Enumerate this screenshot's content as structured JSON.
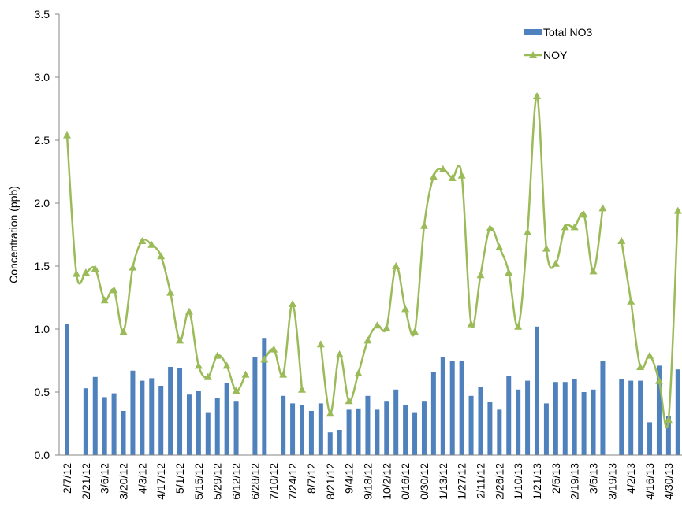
{
  "chart_data": {
    "type": "bar_line",
    "y_label": "Concentration (ppb)",
    "categories": [
      "2/7/12",
      null,
      "2/21/12",
      null,
      "3/6/12",
      null,
      "3/20/12",
      null,
      "4/3/12",
      null,
      "4/17/12",
      null,
      "5/1/12",
      null,
      "5/15/12",
      null,
      "5/29/12",
      null,
      "6/12/12",
      null,
      "6/28/12",
      null,
      "7/10/12",
      null,
      "7/24/12",
      null,
      "8/7/12",
      null,
      "8/21/12",
      null,
      "9/4/12",
      null,
      "9/18/12",
      null,
      "10/2/12",
      null,
      "0/16/12",
      null,
      "0/30/12",
      null,
      "1/13/12",
      null,
      "1/27/12",
      null,
      "2/11/12",
      null,
      "2/26/12",
      null,
      "1/10/13",
      null,
      "1/21/13",
      null,
      "2/5/13",
      null,
      "2/19/13",
      null,
      "3/5/13",
      null,
      "3/19/13",
      null,
      "4/2/13",
      null,
      "4/16/13",
      null,
      "4/30/13",
      null
    ],
    "series": [
      {
        "name": "Total NO3",
        "type": "bar",
        "color": "#4f81bd",
        "values": [
          1.04,
          null,
          0.53,
          0.62,
          0.46,
          0.49,
          0.35,
          0.67,
          0.59,
          0.61,
          0.55,
          0.7,
          0.69,
          0.48,
          0.51,
          0.34,
          0.45,
          0.57,
          0.43,
          null,
          0.78,
          0.93,
          null,
          0.47,
          0.41,
          0.4,
          0.35,
          0.41,
          0.18,
          0.2,
          0.36,
          0.37,
          0.47,
          0.36,
          0.43,
          0.52,
          0.4,
          0.34,
          0.43,
          0.66,
          0.78,
          0.75,
          0.75,
          0.47,
          0.54,
          0.42,
          0.36,
          0.63,
          0.52,
          0.59,
          1.02,
          0.41,
          0.58,
          0.58,
          0.6,
          0.5,
          0.52,
          0.75,
          null,
          0.6,
          0.59,
          0.59,
          0.26,
          0.71,
          0.31,
          0.68
        ]
      },
      {
        "name": "NOY",
        "type": "line",
        "color": "#9bbb59",
        "values": [
          2.54,
          1.44,
          1.45,
          1.48,
          1.23,
          1.31,
          0.98,
          1.49,
          1.7,
          1.67,
          1.58,
          1.29,
          0.91,
          1.14,
          0.71,
          0.62,
          0.79,
          0.71,
          0.51,
          0.64,
          null,
          0.76,
          0.84,
          0.64,
          1.2,
          0.52,
          null,
          0.88,
          0.33,
          0.8,
          0.43,
          0.65,
          0.91,
          1.03,
          1.01,
          1.5,
          1.16,
          0.98,
          1.82,
          2.21,
          2.27,
          2.2,
          2.22,
          1.04,
          1.43,
          1.8,
          1.65,
          1.45,
          1.02,
          1.77,
          2.85,
          1.64,
          1.52,
          1.81,
          1.81,
          1.91,
          1.46,
          1.96,
          null,
          1.7,
          1.22,
          0.7,
          0.79,
          0.59,
          0.28,
          1.94
        ]
      }
    ],
    "ylim": [
      0,
      3.5
    ],
    "yticks": [
      {
        "value": 0,
        "label": "0.0"
      },
      0.5,
      {
        "value": 1,
        "label": "1.0"
      },
      1.5,
      {
        "value": 2,
        "label": "2.0"
      },
      2.5,
      {
        "value": 3,
        "label": "3.0"
      },
      3.5
    ],
    "legend": "top-right"
  }
}
